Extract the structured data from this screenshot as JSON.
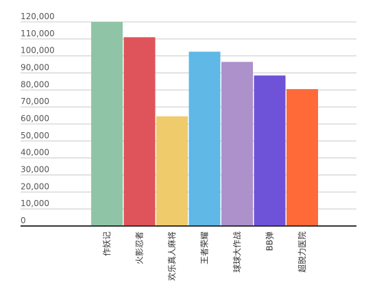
{
  "chart_data": {
    "type": "bar",
    "categories": [
      "作妖记",
      "火影忍者",
      "欢乐真人麻将",
      "王者荣耀",
      "球球大作战",
      "BB弹",
      "超脱力医院"
    ],
    "values": [
      120000,
      111000,
      64500,
      102500,
      96500,
      88500,
      80500
    ],
    "colors": [
      "#8fc4a6",
      "#df545a",
      "#f0cb6b",
      "#5fb8e6",
      "#ac91cb",
      "#6e53d9",
      "#ff6a38"
    ],
    "ylim": [
      0,
      120000
    ],
    "yticks": [
      0,
      10000,
      20000,
      30000,
      40000,
      50000,
      60000,
      70000,
      80000,
      90000,
      100000,
      110000,
      120000
    ],
    "ytick_labels": [
      "0",
      "10,000",
      "20,000",
      "30,000",
      "40,000",
      "50,000",
      "60,000",
      "70,000",
      "80,000",
      "90,000",
      "100,000",
      "110,000",
      "120,000"
    ],
    "grid": true,
    "title": "",
    "xlabel": "",
    "ylabel": ""
  }
}
